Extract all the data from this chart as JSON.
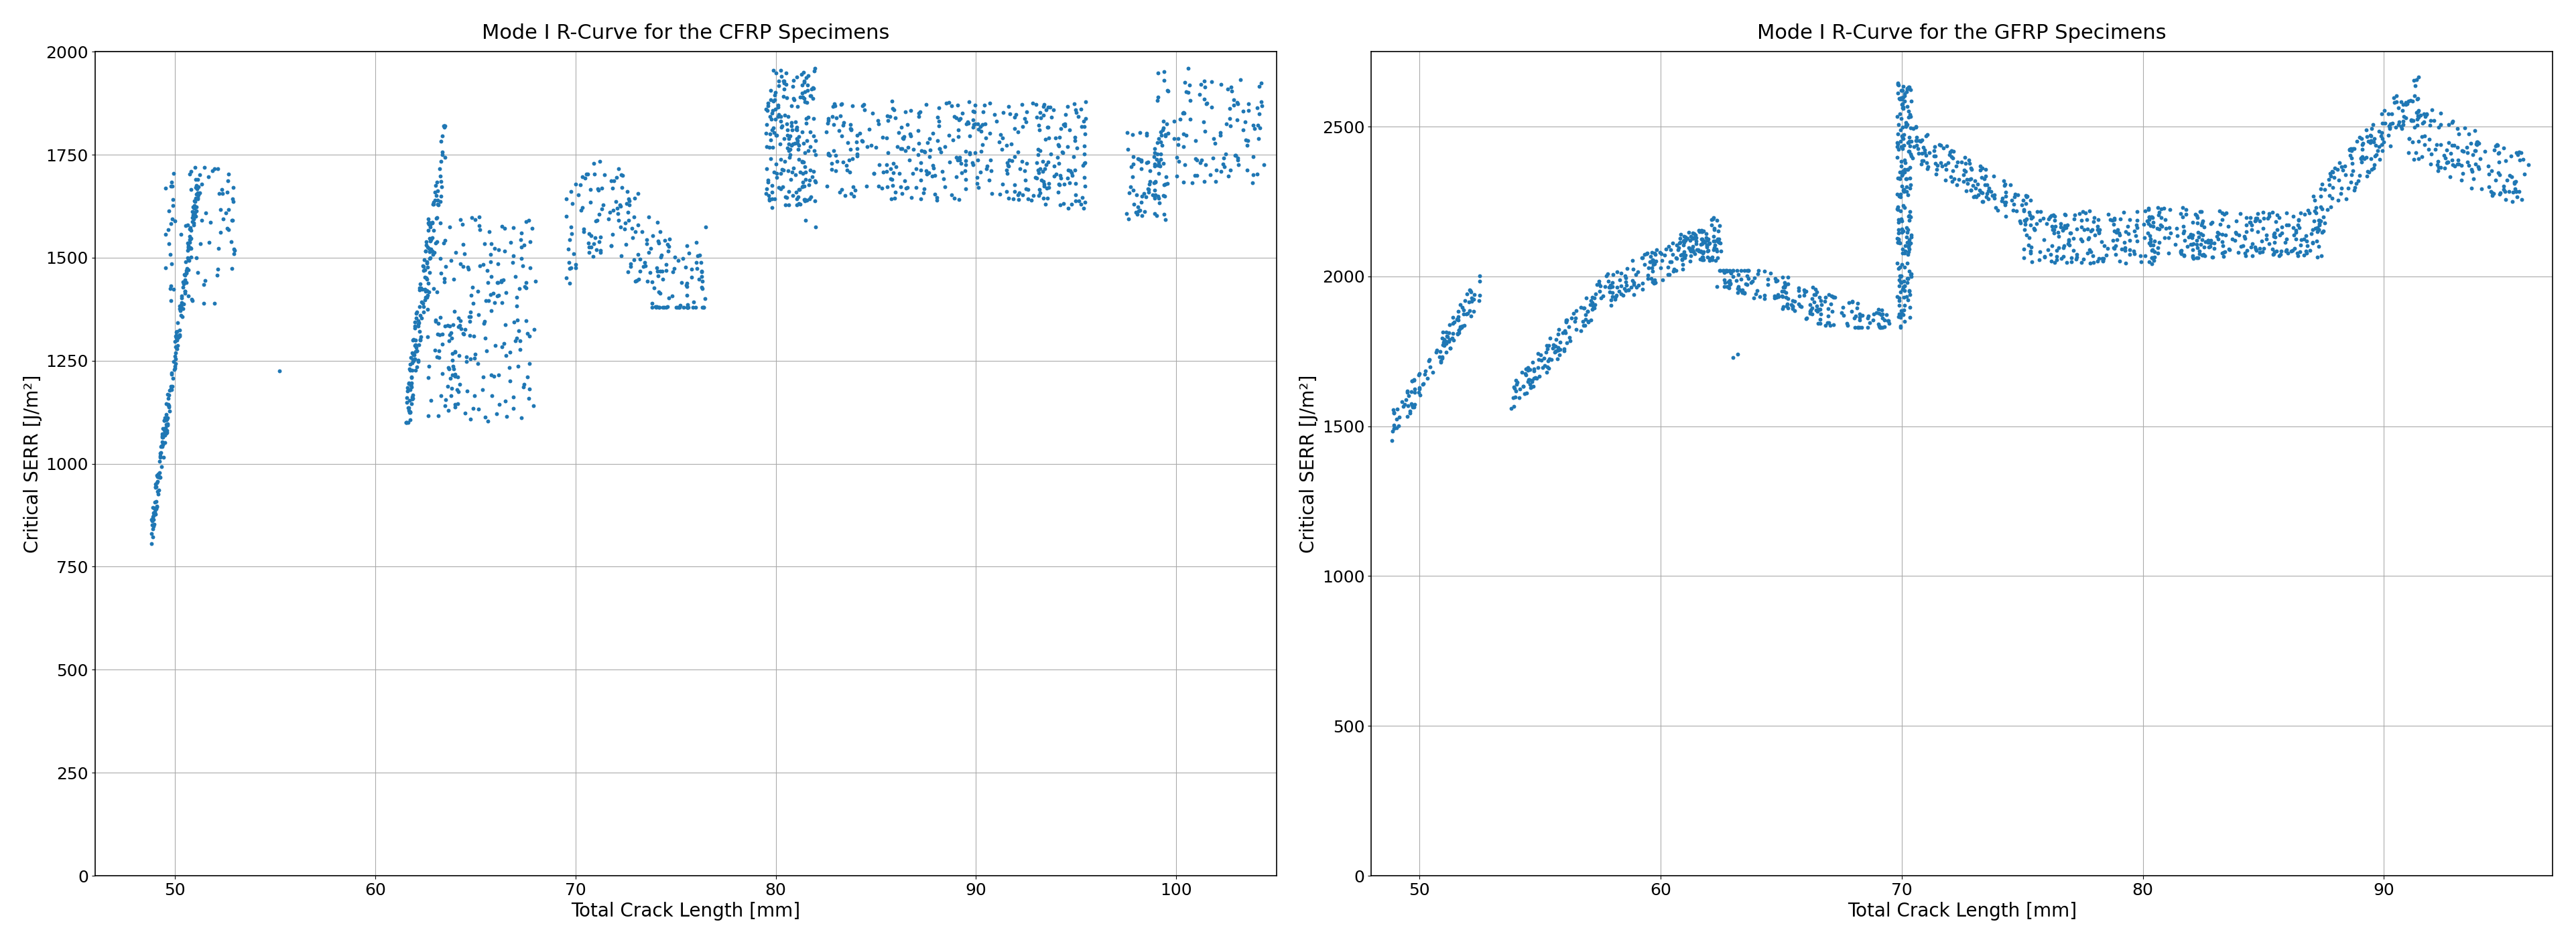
{
  "title1": "Mode I R-Curve for the CFRP Specimens",
  "title2": "Mode I R-Curve for the GFRP Specimens",
  "xlabel": "Total Crack Length [mm]",
  "ylabel": "Critical SERR [J/m²]",
  "dot_color": "#1f77b4",
  "dot_size": 18,
  "cfrp_xlim": [
    46,
    105
  ],
  "cfrp_ylim": [
    0,
    2000
  ],
  "gfrp_xlim": [
    48,
    97
  ],
  "gfrp_ylim": [
    0,
    2750
  ],
  "cfrp_xticks": [
    50,
    60,
    70,
    80,
    90,
    100
  ],
  "cfrp_yticks": [
    0,
    250,
    500,
    750,
    1000,
    1250,
    1500,
    1750,
    2000
  ],
  "gfrp_xticks": [
    50,
    60,
    70,
    80,
    90
  ],
  "gfrp_yticks": [
    0,
    500,
    1000,
    1500,
    2000,
    2500
  ]
}
